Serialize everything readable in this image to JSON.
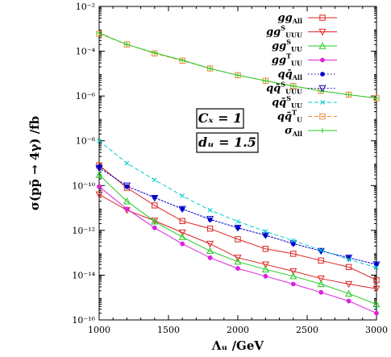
{
  "chart_data": {
    "type": "line",
    "xlabel": "Λᵤ /GeV",
    "ylabel": "σ(pp̄ → 4γ) /fb",
    "xlim": [
      1000,
      3000
    ],
    "ylim": [
      1e-16,
      0.01
    ],
    "y_scale": "log",
    "x_ticks": [
      "1000",
      "1500",
      "2000",
      "2500",
      "3000"
    ],
    "y_ticks": [
      "10⁻¹⁶",
      "10⁻¹⁴",
      "10⁻¹²",
      "10⁻¹⁰",
      "10⁻⁸",
      "10⁻⁶",
      "10⁻⁴",
      "10⁻²"
    ],
    "legend_position": "top-right",
    "grid": false,
    "x": [
      1000,
      1200,
      1400,
      1600,
      1800,
      2000,
      2200,
      2400,
      2600,
      2800,
      3000
    ],
    "series": [
      {
        "name": "gg All",
        "color": "#dd2222",
        "marker": "square",
        "dash": "solid",
        "values": [
          8e-10,
          8e-11,
          1.3e-11,
          2.6e-12,
          1.2e-12,
          4e-13,
          1.5e-13,
          9e-14,
          4.5e-14,
          2.3e-14,
          6e-15
        ]
      },
      {
        "name": "gg S UUU",
        "color": "#dd2222",
        "marker": "triangle-down",
        "dash": "solid",
        "values": [
          4e-11,
          8e-12,
          2.7e-12,
          8e-13,
          2.5e-13,
          6e-14,
          3e-14,
          1.5e-14,
          7e-15,
          4e-15,
          2.5e-15
        ]
      },
      {
        "name": "gg S UU",
        "color": "#22cc22",
        "marker": "triangle-up",
        "dash": "solid",
        "values": [
          3e-10,
          2e-11,
          2.5e-12,
          5e-13,
          1.2e-13,
          4e-14,
          1.8e-14,
          9e-15,
          4e-15,
          1.5e-15,
          5e-16
        ]
      },
      {
        "name": "gg T UU",
        "color": "#dd22dd",
        "marker": "circle",
        "dash": "solid",
        "values": [
          9e-11,
          9e-12,
          1.3e-12,
          2.5e-13,
          6e-14,
          2e-14,
          9e-15,
          4e-15,
          1.7e-15,
          7e-16,
          2e-16
        ]
      },
      {
        "name": "qq̄ All",
        "color": "#0000cc",
        "marker": "circle",
        "dash": "dotted",
        "values": [
          7e-10,
          9e-11,
          3e-11,
          9e-12,
          3e-12,
          1.3e-12,
          6e-13,
          2.5e-13,
          1.2e-13,
          6e-14,
          3e-14
        ]
      },
      {
        "name": "qq̄ S UUU",
        "color": "#0000cc",
        "marker": "triangle-down",
        "dash": "dotted",
        "values": [
          6e-10,
          1e-10,
          2.8e-11,
          9e-12,
          3.2e-12,
          1.3e-12,
          6e-13,
          2.6e-13,
          1.2e-13,
          6e-14,
          3e-14
        ]
      },
      {
        "name": "qq̄ S UU",
        "color": "#00cccc",
        "marker": "x",
        "dash": "dashed",
        "values": [
          1e-08,
          1e-09,
          1.8e-10,
          3.5e-11,
          8e-12,
          2.5e-12,
          9e-13,
          3.5e-13,
          1.3e-13,
          5e-14,
          2.2e-14
        ]
      },
      {
        "name": "qq̄ T U",
        "color": "#ee8833",
        "marker": "square",
        "dash": "dashed",
        "values": [
          0.0006,
          0.0002,
          8e-05,
          3.8e-05,
          1.7e-05,
          8.5e-06,
          4.8e-06,
          2.8e-06,
          1.7e-06,
          1.15e-06,
          8e-07
        ]
      },
      {
        "name": "σ All",
        "color": "#22cc22",
        "marker": "plus",
        "dash": "solid",
        "values": [
          0.00065,
          0.0002,
          8.5e-05,
          4e-05,
          1.7e-05,
          8.5e-06,
          4.8e-06,
          2.8e-06,
          1.7e-06,
          1.15e-06,
          8e-07
        ]
      }
    ],
    "legend": [
      {
        "main": "gg",
        "sup": "",
        "sub": "All"
      },
      {
        "main": "gg",
        "sup": "S",
        "sub": "UUU"
      },
      {
        "main": "gg",
        "sup": "S",
        "sub": "UU"
      },
      {
        "main": "gg",
        "sup": "T",
        "sub": "UU"
      },
      {
        "main": "qq̄",
        "sup": "",
        "sub": "All"
      },
      {
        "main": "qq̄",
        "sup": "S",
        "sub": "UUU"
      },
      {
        "main": "qq̄",
        "sup": "S",
        "sub": "UU"
      },
      {
        "main": "qq̄",
        "sup": "T",
        "sub": "U"
      },
      {
        "main": "σ",
        "sup": "",
        "sub": "All"
      }
    ],
    "annotations": [
      "Cₓ = 1",
      "dᵤ = 1.5"
    ]
  }
}
